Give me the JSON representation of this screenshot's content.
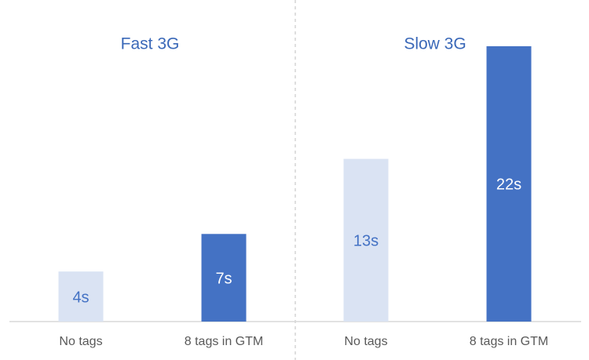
{
  "chart_data": [
    {
      "type": "bar",
      "title": "Fast 3G",
      "categories": [
        "No tags",
        "8 tags in GTM"
      ],
      "values": [
        4,
        7
      ],
      "value_labels": [
        "4s",
        "7s"
      ],
      "colors": [
        "#dae3f3",
        "#4472c4"
      ],
      "label_colors": [
        "#4472c4",
        "#ffffff"
      ],
      "ylim": [
        0,
        24
      ]
    },
    {
      "type": "bar",
      "title": "Slow 3G",
      "categories": [
        "No tags",
        "8 tags in GTM"
      ],
      "values": [
        13,
        22
      ],
      "value_labels": [
        "13s",
        "22s"
      ],
      "colors": [
        "#dae3f3",
        "#4472c4"
      ],
      "label_colors": [
        "#4472c4",
        "#ffffff"
      ],
      "ylim": [
        0,
        24
      ]
    }
  ]
}
